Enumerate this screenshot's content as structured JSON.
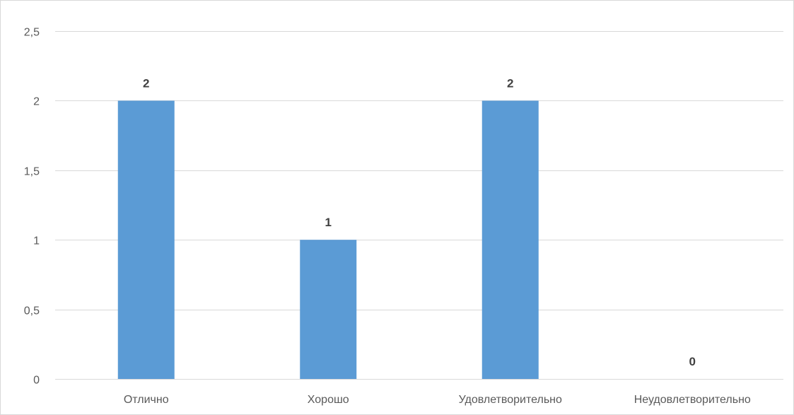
{
  "chart_data": {
    "type": "bar",
    "categories": [
      "Отлично",
      "Хорошо",
      "Удовлетворительно",
      "Неудовлетворительно"
    ],
    "values": [
      2,
      1,
      2,
      0
    ],
    "data_labels": [
      "2",
      "1",
      "2",
      "0"
    ],
    "title": "",
    "xlabel": "",
    "ylabel": "",
    "ylim": [
      0,
      2.5
    ],
    "y_ticks": [
      "0",
      "0,5",
      "1",
      "1,5",
      "2",
      "2,5"
    ],
    "grid": true,
    "legend": "none",
    "bar_color": "#5b9bd5"
  }
}
